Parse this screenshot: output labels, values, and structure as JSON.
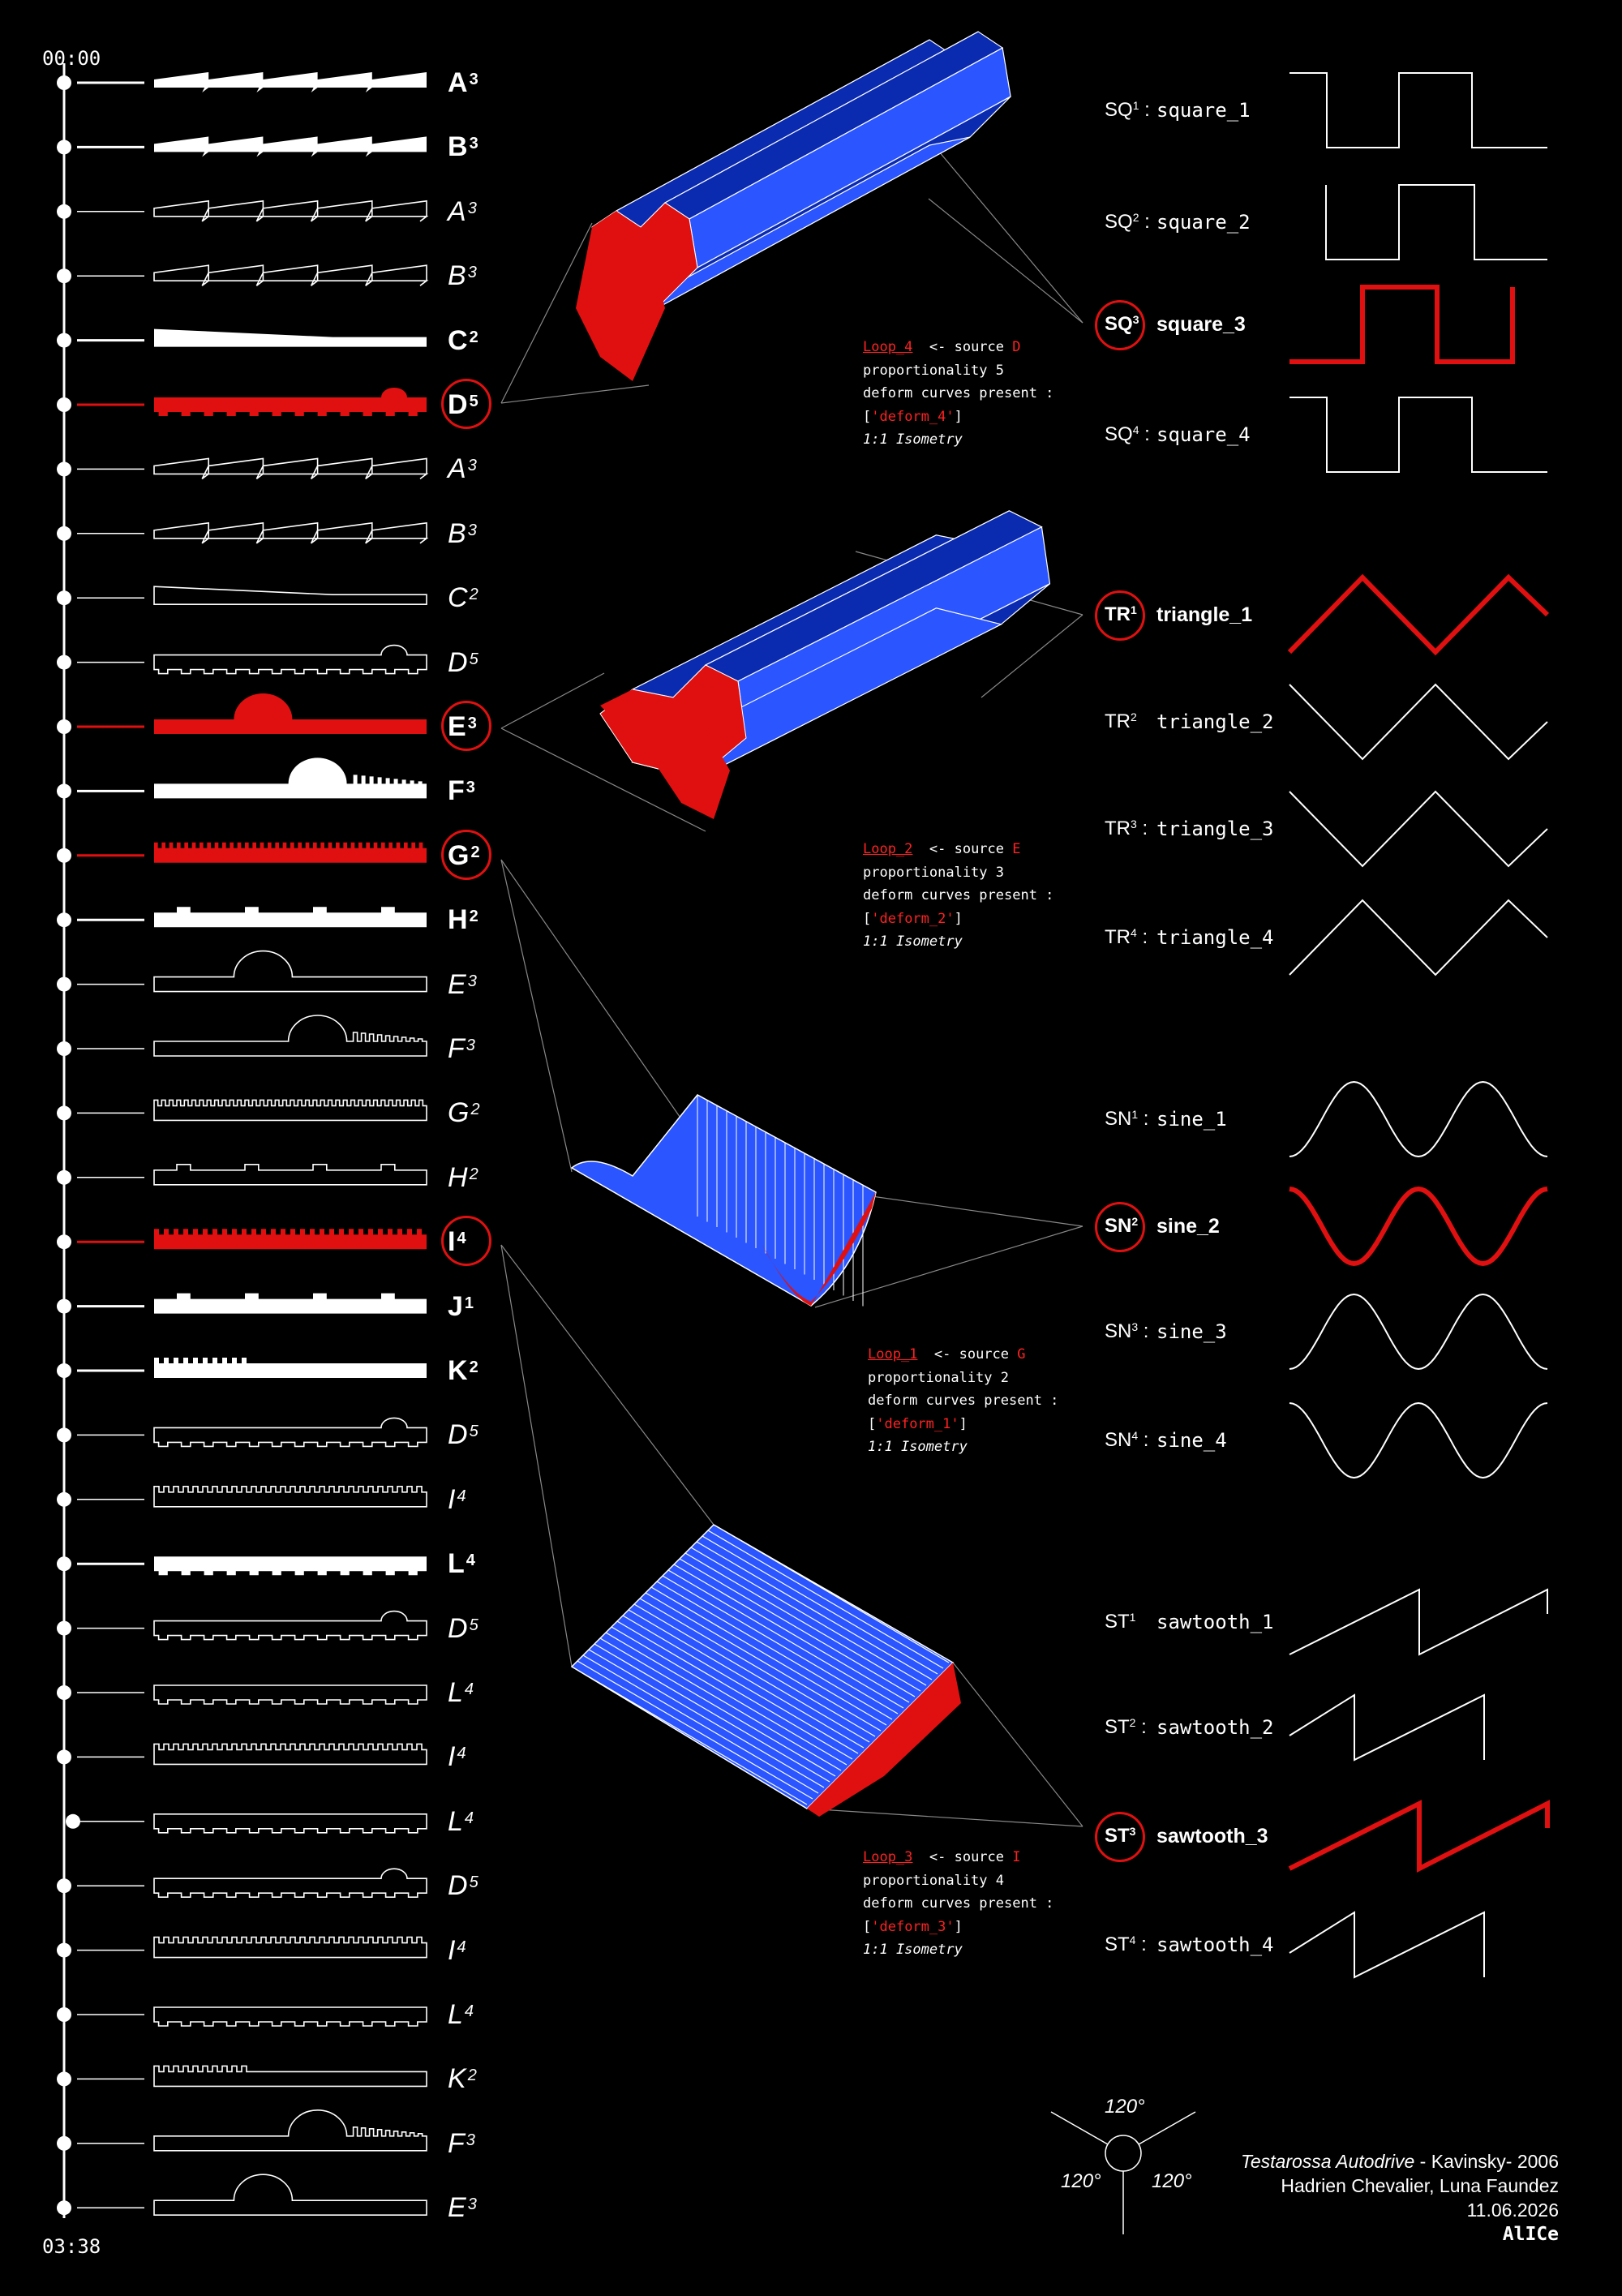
{
  "timeline": {
    "start": "00:00",
    "end": "03:38",
    "rows": [
      {
        "note": "A",
        "sup": "3",
        "style": "bold",
        "pattern": "sawtooth"
      },
      {
        "note": "B",
        "sup": "3",
        "style": "bold",
        "pattern": "sawtooth"
      },
      {
        "note": "A",
        "sup": "3",
        "style": "thin",
        "pattern": "sawtooth"
      },
      {
        "note": "B",
        "sup": "3",
        "style": "thin",
        "pattern": "sawtooth"
      },
      {
        "note": "C",
        "sup": "2",
        "style": "bold",
        "pattern": "wedge"
      },
      {
        "note": "D",
        "sup": "5",
        "style": "red",
        "pattern": "bump-end"
      },
      {
        "note": "A",
        "sup": "3",
        "style": "thin",
        "pattern": "sawtooth"
      },
      {
        "note": "B",
        "sup": "3",
        "style": "thin",
        "pattern": "sawtooth"
      },
      {
        "note": "C",
        "sup": "2",
        "style": "thin",
        "pattern": "wedge"
      },
      {
        "note": "D",
        "sup": "5",
        "style": "thin",
        "pattern": "bump-end"
      },
      {
        "note": "E",
        "sup": "3",
        "style": "red",
        "pattern": "dome"
      },
      {
        "note": "F",
        "sup": "3",
        "style": "bold",
        "pattern": "dome-comb"
      },
      {
        "note": "G",
        "sup": "2",
        "style": "red",
        "pattern": "fine"
      },
      {
        "note": "H",
        "sup": "2",
        "style": "bold",
        "pattern": "blocks"
      },
      {
        "note": "E",
        "sup": "3",
        "style": "thin",
        "pattern": "dome"
      },
      {
        "note": "F",
        "sup": "3",
        "style": "thin",
        "pattern": "dome-comb"
      },
      {
        "note": "G",
        "sup": "2",
        "style": "thin",
        "pattern": "fine"
      },
      {
        "note": "H",
        "sup": "2",
        "style": "thin",
        "pattern": "blocks"
      },
      {
        "note": "I",
        "sup": "4",
        "style": "red",
        "pattern": "comb"
      },
      {
        "note": "J",
        "sup": "1",
        "style": "bold",
        "pattern": "steps"
      },
      {
        "note": "K",
        "sup": "2",
        "style": "bold",
        "pattern": "comb-start"
      },
      {
        "note": "D",
        "sup": "5",
        "style": "thin",
        "pattern": "bump-end"
      },
      {
        "note": "I",
        "sup": "4",
        "style": "thin",
        "pattern": "comb"
      },
      {
        "note": "L",
        "sup": "4",
        "style": "bold",
        "pattern": "plain"
      },
      {
        "note": "D",
        "sup": "5",
        "style": "thin",
        "pattern": "bump-end"
      },
      {
        "note": "L",
        "sup": "4",
        "style": "thin",
        "pattern": "plain"
      },
      {
        "note": "I",
        "sup": "4",
        "style": "thin",
        "pattern": "comb"
      },
      {
        "note": "L",
        "sup": "4",
        "style": "thin",
        "pattern": "plain"
      },
      {
        "note": "D",
        "sup": "5",
        "style": "thin",
        "pattern": "bump-end"
      },
      {
        "note": "I",
        "sup": "4",
        "style": "thin",
        "pattern": "comb"
      },
      {
        "note": "L",
        "sup": "4",
        "style": "thin",
        "pattern": "plain"
      },
      {
        "note": "K",
        "sup": "2",
        "style": "thin",
        "pattern": "comb-start"
      },
      {
        "note": "F",
        "sup": "3",
        "style": "thin",
        "pattern": "dome-comb"
      },
      {
        "note": "E",
        "sup": "3",
        "style": "thin",
        "pattern": "dome"
      }
    ]
  },
  "loops": [
    {
      "name": "Loop_4",
      "arrow": "  <- source ",
      "source": "D",
      "prop": "proportionality 5",
      "deform_label": "deform curves present :",
      "deform": "'deform_4'",
      "iso": "1:1 Isometry"
    },
    {
      "name": "Loop_2",
      "arrow": "  <- source ",
      "source": "E",
      "prop": "proportionality 3",
      "deform_label": "deform curves present :",
      "deform": "'deform_2'",
      "iso": "1:1 Isometry"
    },
    {
      "name": "Loop_1",
      "arrow": "  <- source ",
      "source": "G",
      "prop": "proportionality 2",
      "deform_label": "deform curves present :",
      "deform": "'deform_1'",
      "iso": "1:1 Isometry"
    },
    {
      "name": "Loop_3",
      "arrow": "  <- source ",
      "source": "I",
      "prop": "proportionality 4",
      "deform_label": "deform curves present :",
      "deform": "'deform_3'",
      "iso": "1:1 Isometry"
    }
  ],
  "waves": [
    {
      "code": "SQ",
      "sup": "1",
      "sep": " :",
      "name": "square_1",
      "type": "square",
      "selected": false
    },
    {
      "code": "SQ",
      "sup": "2",
      "sep": " :",
      "name": "square_2",
      "type": "square",
      "selected": false
    },
    {
      "code": "SQ",
      "sup": "3",
      "sep": "",
      "name": "square_3",
      "type": "square",
      "selected": true
    },
    {
      "code": "SQ",
      "sup": "4",
      "sep": " :",
      "name": "square_4",
      "type": "square",
      "selected": false
    },
    {
      "code": "TR",
      "sup": "1",
      "sep": "",
      "name": "triangle_1",
      "type": "triangle",
      "selected": true
    },
    {
      "code": "TR",
      "sup": "2",
      "sep": "",
      "name": "triangle_2",
      "type": "triangle",
      "selected": false
    },
    {
      "code": "TR",
      "sup": "3",
      "sep": " :",
      "name": "triangle_3",
      "type": "triangle",
      "selected": false
    },
    {
      "code": "TR",
      "sup": "4",
      "sep": " :",
      "name": "triangle_4",
      "type": "triangle",
      "selected": false
    },
    {
      "code": "SN",
      "sup": "1",
      "sep": " :",
      "name": "sine_1",
      "type": "sine",
      "selected": false
    },
    {
      "code": "SN",
      "sup": "2",
      "sep": "",
      "name": "sine_2",
      "type": "sine",
      "selected": true
    },
    {
      "code": "SN",
      "sup": "3",
      "sep": " :",
      "name": "sine_3",
      "type": "sine",
      "selected": false
    },
    {
      "code": "SN",
      "sup": "4",
      "sep": " :",
      "name": "sine_4",
      "type": "sine",
      "selected": false
    },
    {
      "code": "ST",
      "sup": "1",
      "sep": "",
      "name": "sawtooth_1",
      "type": "sawtooth",
      "selected": false
    },
    {
      "code": "ST",
      "sup": "2",
      "sep": " :",
      "name": "sawtooth_2",
      "type": "sawtooth",
      "selected": false
    },
    {
      "code": "ST",
      "sup": "3",
      "sep": "",
      "name": "sawtooth_3",
      "type": "sawtooth",
      "selected": true
    },
    {
      "code": "ST",
      "sup": "4",
      "sep": " :",
      "name": "sawtooth_4",
      "type": "sawtooth",
      "selected": false
    }
  ],
  "angles": {
    "top": "120°",
    "left": "120°",
    "right": "120°"
  },
  "credits": {
    "title": "Testarossa Autodrive",
    "artist": " - Kavinsky- 2006",
    "authors": "Hadrien Chevalier, Luna Faundez",
    "date": "11.06.2026",
    "lab": "AlICe"
  },
  "colors": {
    "accent": "#e01010",
    "blue": "#2a55ff",
    "darkblue": "#0a2ab0",
    "line": "#ffffff",
    "bg": "#000000"
  }
}
